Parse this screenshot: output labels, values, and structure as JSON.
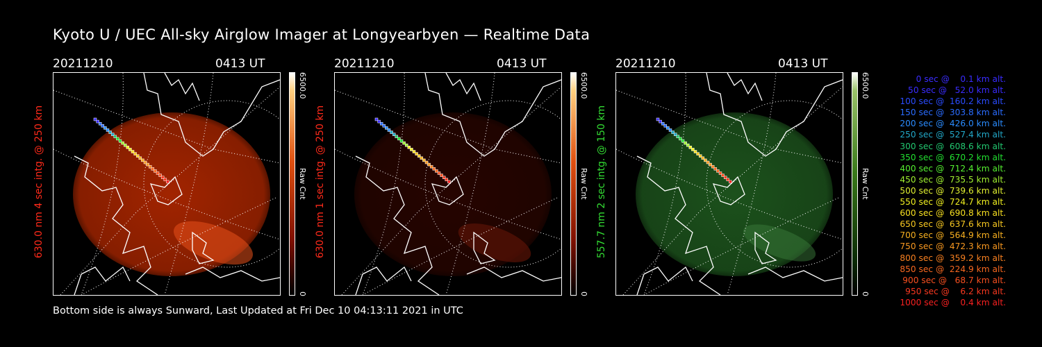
{
  "title": "Kyoto U / UEC All-sky Airglow Imager at Longyearbyen — Realtime Data",
  "footer": "Bottom side is always Sunward, Last Updated at Fri Dec 10 04:13:11 2021 in UTC",
  "panels": [
    {
      "date": "20211210",
      "time": "0413 UT",
      "ylabel": "630.0 nm  4 sec intg. @ 250 km",
      "ylabel_color": "#ff2a1a",
      "cmax": "6500.0",
      "cunit": "Raw Cnt",
      "cmin": "0",
      "colormap": "red",
      "glow": "#b32800"
    },
    {
      "date": "20211210",
      "time": "0413 UT",
      "ylabel": "630.0 nm  1 sec intg. @ 250 km",
      "ylabel_color": "#ff2a1a",
      "cmax": "6500.0",
      "cunit": "Raw Cnt",
      "cmin": "0",
      "colormap": "red",
      "glow": "#2a0500"
    },
    {
      "date": "20211210",
      "time": "0413 UT",
      "ylabel": "557.7 nm  2 sec intg. @ 150 km",
      "ylabel_color": "#33dd33",
      "cmax": "6500.0",
      "cunit": "Raw Cnt",
      "cmin": "0",
      "colormap": "green",
      "glow": "#1f5a1f"
    }
  ],
  "legend": [
    {
      "text": "   0 sec @    0.1 km alt.",
      "color": "#3a2cff"
    },
    {
      "text": "  50 sec @   52.0 km alt.",
      "color": "#3a2cff"
    },
    {
      "text": " 100 sec @  160.2 km alt.",
      "color": "#2a4cff"
    },
    {
      "text": " 150 sec @  303.8 km alt.",
      "color": "#2a6cff"
    },
    {
      "text": " 200 sec @  426.0 km alt.",
      "color": "#2a8cff"
    },
    {
      "text": " 250 sec @  527.4 km alt.",
      "color": "#22a8c8"
    },
    {
      "text": " 300 sec @  608.6 km alt.",
      "color": "#22c870"
    },
    {
      "text": " 350 sec @  670.2 km alt.",
      "color": "#22e030"
    },
    {
      "text": " 400 sec @  712.4 km alt.",
      "color": "#55f030"
    },
    {
      "text": " 450 sec @  735.5 km alt.",
      "color": "#a0f030"
    },
    {
      "text": " 500 sec @  739.6 km alt.",
      "color": "#e0f030"
    },
    {
      "text": " 550 sec @  724.7 km alt.",
      "color": "#f0f020"
    },
    {
      "text": " 600 sec @  690.8 km alt.",
      "color": "#f8e020"
    },
    {
      "text": " 650 sec @  637.6 km alt.",
      "color": "#f8c820"
    },
    {
      "text": " 700 sec @  564.9 km alt.",
      "color": "#f8b020"
    },
    {
      "text": " 750 sec @  472.3 km alt.",
      "color": "#f89820"
    },
    {
      "text": " 800 sec @  359.2 km alt.",
      "color": "#f88020"
    },
    {
      "text": " 850 sec @  224.9 km alt.",
      "color": "#f86820"
    },
    {
      "text": " 900 sec @   68.7 km alt.",
      "color": "#f85020"
    },
    {
      "text": " 950 sec @    6.2 km alt.",
      "color": "#f83820"
    },
    {
      "text": "1000 sec @    0.4 km alt.",
      "color": "#f82020"
    }
  ]
}
